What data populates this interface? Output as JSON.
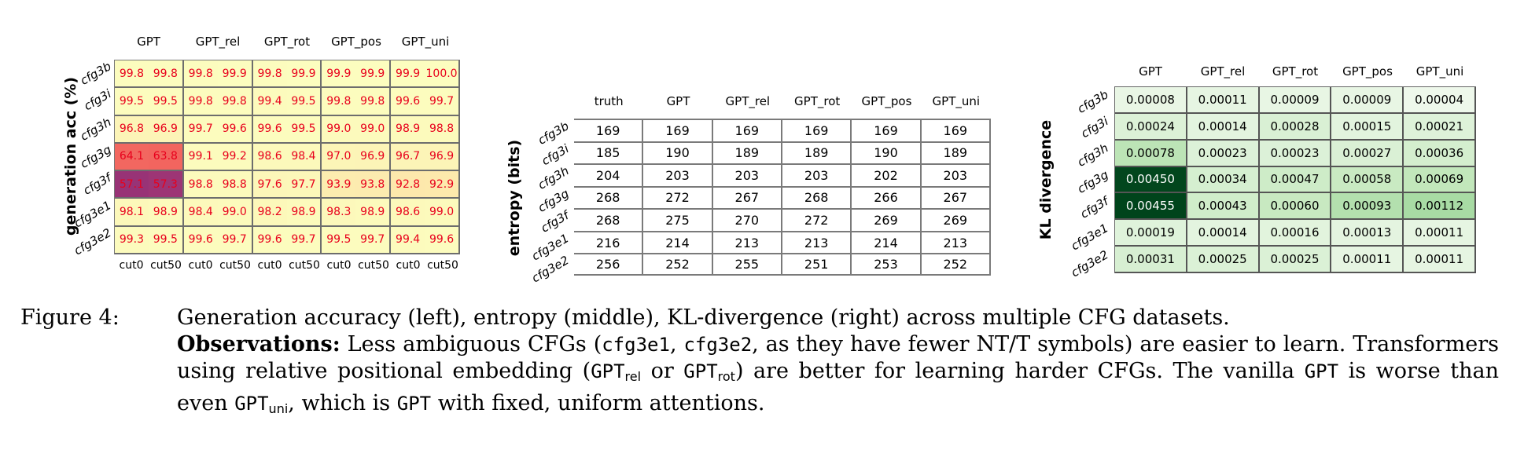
{
  "chart_data": [
    {
      "type": "heatmap",
      "ylabel": "generation acc (%)",
      "columns": [
        "GPT",
        "GPT_rel",
        "GPT_rot",
        "GPT_pos",
        "GPT_uni"
      ],
      "subcolumns": [
        "cut0",
        "cut50"
      ],
      "rows": [
        "cfg3b",
        "cfg3i",
        "cfg3h",
        "cfg3g",
        "cfg3f",
        "cfg3e1",
        "cfg3e2"
      ],
      "values": [
        [
          [
            99.8,
            99.8
          ],
          [
            99.8,
            99.9
          ],
          [
            99.8,
            99.9
          ],
          [
            99.9,
            99.9
          ],
          [
            99.9,
            100.0
          ]
        ],
        [
          [
            99.5,
            99.5
          ],
          [
            99.8,
            99.8
          ],
          [
            99.4,
            99.5
          ],
          [
            99.8,
            99.8
          ],
          [
            99.6,
            99.7
          ]
        ],
        [
          [
            96.8,
            96.9
          ],
          [
            99.7,
            99.6
          ],
          [
            99.6,
            99.5
          ],
          [
            99.0,
            99.0
          ],
          [
            98.9,
            98.8
          ]
        ],
        [
          [
            64.1,
            63.8
          ],
          [
            99.1,
            99.2
          ],
          [
            98.6,
            98.4
          ],
          [
            97.0,
            96.9
          ],
          [
            96.7,
            96.9
          ]
        ],
        [
          [
            57.1,
            57.3
          ],
          [
            98.8,
            98.8
          ],
          [
            97.6,
            97.7
          ],
          [
            93.9,
            93.8
          ],
          [
            92.8,
            92.9
          ]
        ],
        [
          [
            98.1,
            98.9
          ],
          [
            98.4,
            99.0
          ],
          [
            98.2,
            98.9
          ],
          [
            98.3,
            98.9
          ],
          [
            98.6,
            99.0
          ]
        ],
        [
          [
            99.3,
            99.5
          ],
          [
            99.6,
            99.7
          ],
          [
            99.6,
            99.7
          ],
          [
            99.5,
            99.7
          ],
          [
            99.4,
            99.6
          ]
        ]
      ]
    },
    {
      "type": "table",
      "ylabel": "entropy (bits)",
      "columns": [
        "truth",
        "GPT",
        "GPT_rel",
        "GPT_rot",
        "GPT_pos",
        "GPT_uni"
      ],
      "rows": [
        "cfg3b",
        "cfg3i",
        "cfg3h",
        "cfg3g",
        "cfg3f",
        "cfg3e1",
        "cfg3e2"
      ],
      "values": [
        [
          169,
          169,
          169,
          169,
          169,
          169
        ],
        [
          185,
          190,
          189,
          189,
          190,
          189
        ],
        [
          204,
          203,
          203,
          203,
          202,
          203
        ],
        [
          268,
          272,
          267,
          268,
          266,
          267
        ],
        [
          268,
          275,
          270,
          272,
          269,
          269
        ],
        [
          216,
          214,
          213,
          213,
          214,
          213
        ],
        [
          256,
          252,
          255,
          251,
          253,
          252
        ]
      ]
    },
    {
      "type": "heatmap",
      "ylabel": "KL divergence",
      "columns": [
        "GPT",
        "GPT_rel",
        "GPT_rot",
        "GPT_pos",
        "GPT_uni"
      ],
      "rows": [
        "cfg3b",
        "cfg3i",
        "cfg3h",
        "cfg3g",
        "cfg3f",
        "cfg3e1",
        "cfg3e2"
      ],
      "values": [
        [
          "0.00008",
          "0.00011",
          "0.00009",
          "0.00009",
          "0.00004"
        ],
        [
          "0.00024",
          "0.00014",
          "0.00028",
          "0.00015",
          "0.00021"
        ],
        [
          "0.00078",
          "0.00023",
          "0.00023",
          "0.00027",
          "0.00036"
        ],
        [
          "0.00450",
          "0.00034",
          "0.00047",
          "0.00058",
          "0.00069"
        ],
        [
          "0.00455",
          "0.00043",
          "0.00060",
          "0.00093",
          "0.00112"
        ],
        [
          "0.00019",
          "0.00014",
          "0.00016",
          "0.00013",
          "0.00011"
        ],
        [
          "0.00031",
          "0.00025",
          "0.00025",
          "0.00011",
          "0.00011"
        ]
      ]
    }
  ],
  "caption": {
    "label": "Figure 4:",
    "line1": "Generation accuracy (left), entropy (middle), KL-divergence (right) across multiple CFG datasets.",
    "obs_title": "Observations:",
    "obs_a": " Less ambiguous CFGs (",
    "code_cfg3e1": "cfg3e1",
    "comma": ", ",
    "code_cfg3e2": "cfg3e2",
    "obs_b": ", as they have fewer NT/T symbols) are easier to learn.  Transformers using relative positional embedding (",
    "code_gpt": "GPT",
    "sub_rel": "rel",
    "or": " or ",
    "sub_rot": "rot",
    "obs_c": ") are better for learning harder CFGs. The vanilla ",
    "obs_d": " is worse than even ",
    "sub_uni": "uni",
    "obs_e": ", which is ",
    "obs_f": " with fixed, uniform attentions."
  }
}
